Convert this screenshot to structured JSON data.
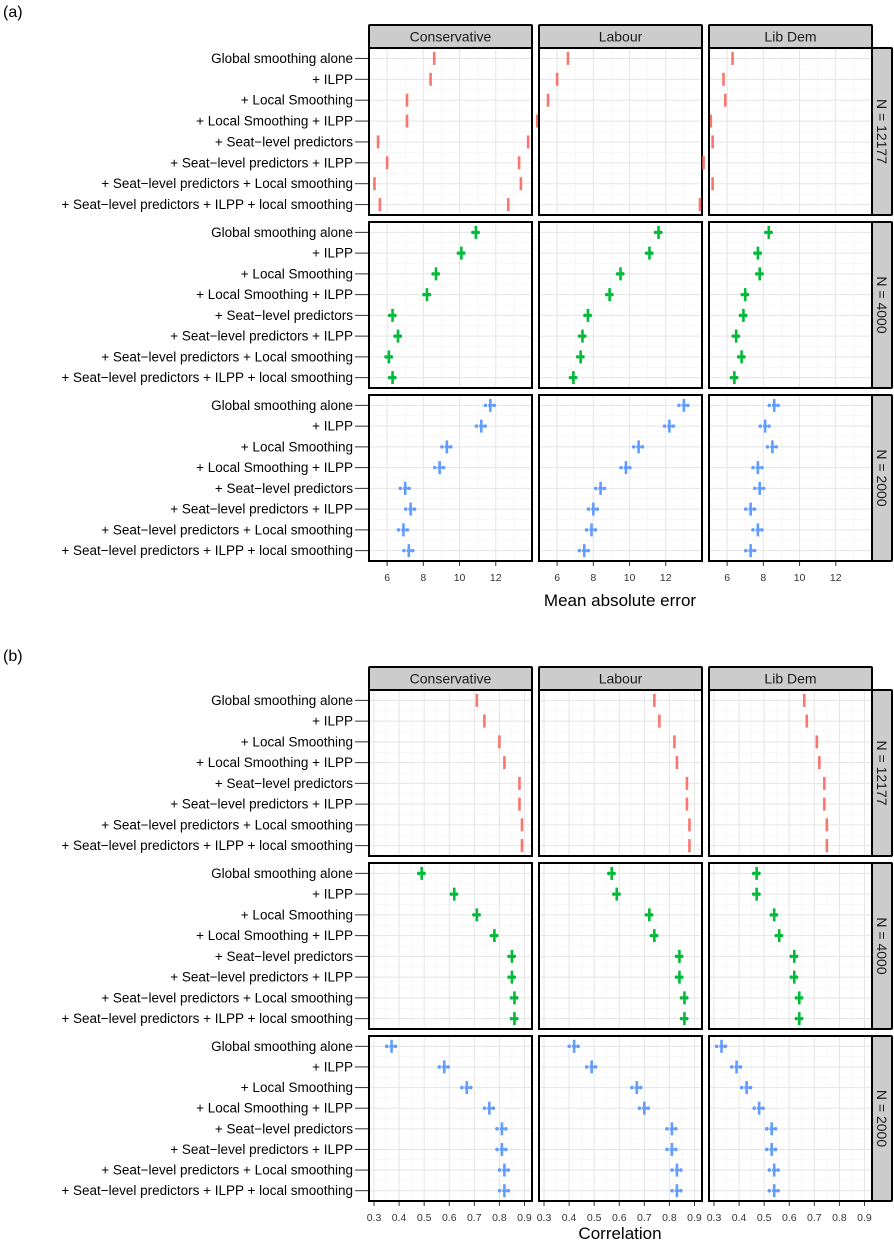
{
  "rows": [
    "Global smoothing alone",
    "+ ILPP",
    "+ Local Smoothing",
    "+ Local Smoothing + ILPP",
    "+ Seat−level predictors",
    "+ Seat−level predictors + ILPP",
    "+ Seat−level predictors + Local smoothing",
    "+ Seat−level predictors + ILPP + local smoothing"
  ],
  "parties": [
    "Conservative",
    "Labour",
    "Lib Dem"
  ],
  "sample_sizes": [
    "N = 12177",
    "N = 4000",
    "N = 2000"
  ],
  "colors": {
    "N = 12177": "#f8766d",
    "N = 4000": "#00ba38",
    "N = 2000": "#619cff"
  },
  "chart_data": [
    {
      "type": "scatter",
      "part_label": "(a)",
      "xlabel": "Mean absolute error",
      "xlim": [
        5,
        14
      ],
      "ticks": [
        6,
        8,
        10,
        12
      ],
      "tick_labels": [
        "6",
        "8",
        "10",
        "12"
      ],
      "values": {
        "N = 12177": {
          "Conservative": [
            8.6,
            8.4,
            7.1,
            7.1,
            5.5,
            6.0,
            5.3,
            5.6
          ],
          "Labour": [
            6.6,
            6.0,
            5.5,
            4.9,
            4.4,
            3.9,
            4.0,
            3.3
          ],
          "Lib Dem": [
            6.3,
            5.8,
            5.9,
            5.1,
            5.2,
            4.7,
            5.2,
            4.5
          ]
        },
        "N = 4000": {
          "Conservative": [
            10.9,
            10.1,
            8.7,
            8.2,
            6.3,
            6.6,
            6.1,
            6.3
          ],
          "Labour": [
            11.6,
            11.1,
            9.5,
            8.9,
            7.7,
            7.4,
            7.3,
            6.9
          ],
          "Lib Dem": [
            8.3,
            7.7,
            7.8,
            7.0,
            6.9,
            6.5,
            6.8,
            6.4
          ]
        },
        "N = 2000": {
          "Conservative": [
            11.7,
            11.2,
            9.3,
            8.9,
            7.0,
            7.3,
            6.9,
            7.2
          ],
          "Labour": [
            13.0,
            12.2,
            10.5,
            9.8,
            8.4,
            8.0,
            7.9,
            7.5
          ],
          "Lib Dem": [
            8.6,
            8.1,
            8.5,
            7.7,
            7.8,
            7.3,
            7.7,
            7.3
          ]
        }
      }
    },
    {
      "type": "scatter",
      "part_label": "(b)",
      "xlabel": "Correlation",
      "xlim": [
        0.28,
        0.93
      ],
      "ticks": [
        0.3,
        0.4,
        0.5,
        0.6,
        0.7,
        0.8,
        0.9
      ],
      "tick_labels": [
        "0.3",
        "0.4",
        "0.5",
        "0.6",
        "0.7",
        "0.8",
        "0.9"
      ],
      "values": {
        "N = 12177": {
          "Conservative": [
            0.71,
            0.74,
            0.8,
            0.82,
            0.88,
            0.88,
            0.89,
            0.89
          ],
          "Labour": [
            0.74,
            0.76,
            0.82,
            0.83,
            0.87,
            0.87,
            0.88,
            0.88
          ],
          "Lib Dem": [
            0.66,
            0.67,
            0.71,
            0.72,
            0.74,
            0.74,
            0.75,
            0.75
          ]
        },
        "N = 4000": {
          "Conservative": [
            0.49,
            0.62,
            0.71,
            0.78,
            0.85,
            0.85,
            0.86,
            0.86
          ],
          "Labour": [
            0.57,
            0.59,
            0.72,
            0.74,
            0.84,
            0.84,
            0.86,
            0.86
          ],
          "Lib Dem": [
            0.47,
            0.47,
            0.54,
            0.56,
            0.62,
            0.62,
            0.64,
            0.64
          ]
        },
        "N = 2000": {
          "Conservative": [
            0.37,
            0.58,
            0.67,
            0.76,
            0.81,
            0.81,
            0.82,
            0.82
          ],
          "Labour": [
            0.42,
            0.49,
            0.67,
            0.7,
            0.81,
            0.81,
            0.83,
            0.83
          ],
          "Lib Dem": [
            0.33,
            0.39,
            0.43,
            0.48,
            0.53,
            0.53,
            0.54,
            0.54
          ]
        }
      }
    }
  ]
}
